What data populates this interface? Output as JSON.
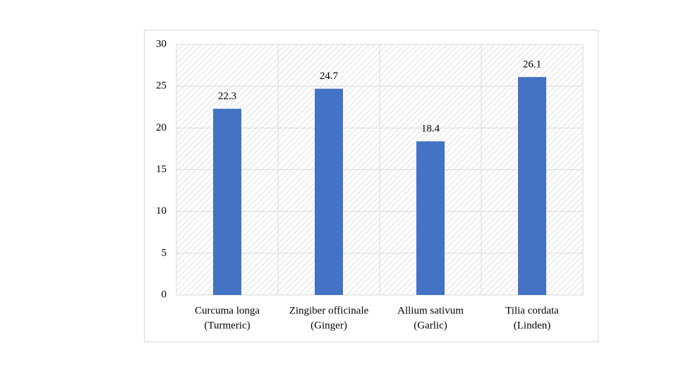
{
  "chart_data": {
    "type": "bar",
    "categories": [
      [
        "Curcuma longa",
        "(Turmeric)"
      ],
      [
        "Zingiber officinale",
        "(Ginger)"
      ],
      [
        "Allium sativum",
        "(Garlic)"
      ],
      [
        "Tilia cordata",
        "(Linden)"
      ]
    ],
    "values": [
      22.3,
      24.7,
      18.4,
      26.1
    ],
    "color": "#4472c4",
    "ylim": [
      0,
      30
    ],
    "yticks": [
      0,
      5,
      10,
      15,
      20,
      25,
      30
    ],
    "grid": true
  }
}
